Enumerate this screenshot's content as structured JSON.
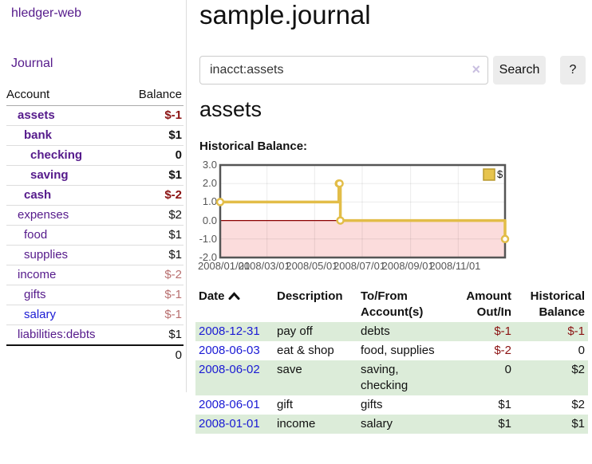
{
  "app": {
    "brand": "hledger-web",
    "nav_journal": "Journal"
  },
  "sidebar": {
    "accounts_header": {
      "account": "Account",
      "balance": "Balance"
    },
    "accounts": [
      {
        "name": "assets",
        "depth": 0,
        "emphasized": true,
        "visited": true,
        "balance": "$-1",
        "balance_class": "neg"
      },
      {
        "name": "bank",
        "depth": 1,
        "emphasized": true,
        "visited": true,
        "balance": "$1",
        "balance_class": "pos"
      },
      {
        "name": "checking",
        "depth": 2,
        "emphasized": true,
        "visited": true,
        "balance": "0",
        "balance_class": "pos"
      },
      {
        "name": "saving",
        "depth": 2,
        "emphasized": true,
        "visited": true,
        "balance": "$1",
        "balance_class": "pos"
      },
      {
        "name": "cash",
        "depth": 1,
        "emphasized": true,
        "visited": true,
        "balance": "$-2",
        "balance_class": "neg"
      },
      {
        "name": "expenses",
        "depth": 0,
        "emphasized": false,
        "visited": true,
        "balance": "$2",
        "balance_class": "pos"
      },
      {
        "name": "food",
        "depth": 1,
        "emphasized": false,
        "visited": true,
        "balance": "$1",
        "balance_class": "pos"
      },
      {
        "name": "supplies",
        "depth": 1,
        "emphasized": false,
        "visited": true,
        "balance": "$1",
        "balance_class": "pos"
      },
      {
        "name": "income",
        "depth": 0,
        "emphasized": false,
        "visited": true,
        "balance": "$-2",
        "balance_class": "negmuted"
      },
      {
        "name": "gifts",
        "depth": 1,
        "emphasized": false,
        "visited": true,
        "balance": "$-1",
        "balance_class": "negmuted"
      },
      {
        "name": "salary",
        "depth": 1,
        "emphasized": false,
        "visited": false,
        "balance": "$-1",
        "balance_class": "negmuted"
      },
      {
        "name": "liabilities:debts",
        "depth": 0,
        "emphasized": false,
        "visited": true,
        "balance": "$1",
        "balance_class": "pos"
      }
    ],
    "total": "0"
  },
  "header": {
    "title": "sample.journal"
  },
  "search": {
    "value": "inacct:assets",
    "clear_icon": "×",
    "button_label": "Search",
    "help_label": "?"
  },
  "account_page": {
    "title": "assets",
    "chart_label": "Historical Balance:"
  },
  "chart_data": {
    "type": "line",
    "step": true,
    "title": "Historical Balance",
    "series": [
      {
        "name": "$",
        "color": "#e2bd48",
        "points": [
          [
            "2008-01-01",
            1
          ],
          [
            "2008-06-01",
            2
          ],
          [
            "2008-06-02",
            2
          ],
          [
            "2008-06-03",
            0
          ],
          [
            "2008-12-31",
            -1
          ]
        ]
      }
    ],
    "xlim": [
      "2008-01-01",
      "2008-12-31"
    ],
    "ylim": [
      -2,
      3
    ],
    "x_ticks": [
      "2008/01/01",
      "2008/03/01",
      "2008/05/01",
      "2008/07/01",
      "2008/09/01",
      "2008/11/01"
    ],
    "y_ticks": [
      "3.0",
      "2.0",
      "1.0",
      "0.0",
      "-1.0",
      "-2.0"
    ],
    "legend": "$",
    "legend_position": "top-right",
    "grid": true,
    "negative_region_color": "#fbdcdc",
    "zero_line_color": "#8b0000",
    "border_color": "#555555",
    "gridline_color": "#e3e3e3"
  },
  "register": {
    "columns": [
      {
        "label": "Date",
        "align": "left",
        "sorted": "asc"
      },
      {
        "label": "Description",
        "align": "left"
      },
      {
        "label": "To/From Account(s)",
        "align": "left"
      },
      {
        "label": "Amount Out/In",
        "align": "right"
      },
      {
        "label": "Historical Balance",
        "align": "right"
      }
    ],
    "rows": [
      {
        "date": "2008-12-31",
        "description": "pay off",
        "accounts": "debts",
        "amount": "$-1",
        "balance": "$-1",
        "shaded": true
      },
      {
        "date": "2008-06-03",
        "description": "eat & shop",
        "accounts": "food, supplies",
        "amount": "$-2",
        "balance": "0",
        "shaded": false
      },
      {
        "date": "2008-06-02",
        "description": "save",
        "accounts": "saving, checking",
        "amount": "0",
        "balance": "$2",
        "shaded": true
      },
      {
        "date": "2008-06-01",
        "description": "gift",
        "accounts": "gifts",
        "amount": "$1",
        "balance": "$2",
        "shaded": false
      },
      {
        "date": "2008-01-01",
        "description": "income",
        "accounts": "salary",
        "amount": "$1",
        "balance": "$1",
        "shaded": true
      }
    ]
  }
}
